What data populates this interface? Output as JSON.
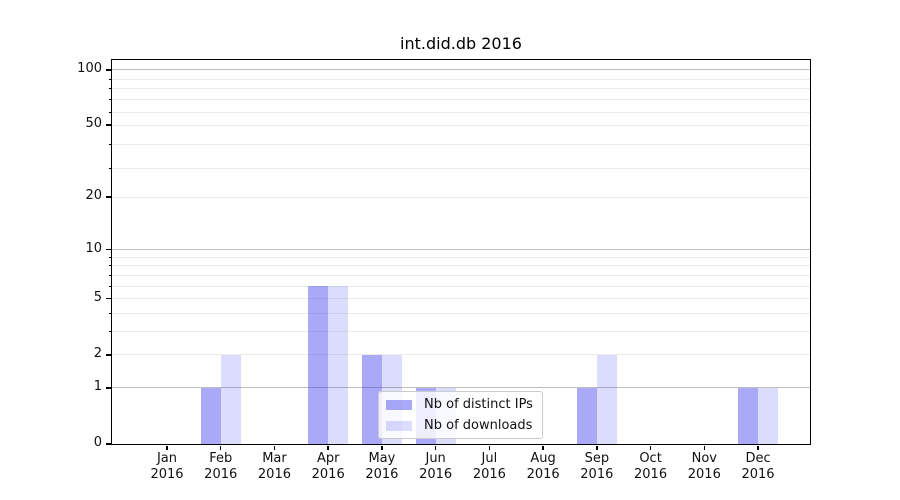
{
  "chart_data": {
    "type": "bar",
    "title": "int.did.db 2016",
    "categories": [
      "Jan 2016",
      "Feb 2016",
      "Mar 2016",
      "Apr 2016",
      "May 2016",
      "Jun 2016",
      "Jul 2016",
      "Aug 2016",
      "Sep 2016",
      "Oct 2016",
      "Nov 2016",
      "Dec 2016"
    ],
    "x_tick_line1": [
      "Jan",
      "Feb",
      "Mar",
      "Apr",
      "May",
      "Jun",
      "Jul",
      "Aug",
      "Sep",
      "Oct",
      "Nov",
      "Dec"
    ],
    "x_tick_line2": [
      "2016",
      "2016",
      "2016",
      "2016",
      "2016",
      "2016",
      "2016",
      "2016",
      "2016",
      "2016",
      "2016",
      "2016"
    ],
    "series": [
      {
        "name": "Nb of distinct IPs",
        "color": "rgba(40,40,235,0.40)",
        "values": [
          0,
          1,
          0,
          6,
          2,
          1,
          0,
          0,
          1,
          0,
          0,
          1
        ]
      },
      {
        "name": "Nb of downloads",
        "color": "rgba(40,40,235,0.165)",
        "values": [
          0,
          2,
          0,
          6,
          2,
          1,
          0,
          0,
          2,
          0,
          0,
          1
        ]
      }
    ],
    "y_axis": {
      "scale": "log1p",
      "tick_values": [
        0,
        1,
        2,
        5,
        10,
        20,
        50,
        100
      ],
      "tick_labels": [
        "0",
        "1",
        "2",
        "5",
        "10",
        "20",
        "50",
        "100"
      ],
      "major_gridline_values": [
        1,
        10,
        100
      ],
      "minor_gridline_values": [
        3,
        4,
        6,
        7,
        8,
        9,
        29,
        39,
        59,
        69,
        79,
        89
      ],
      "y_top": 113
    },
    "grid": "both",
    "legend": {
      "position": "lower center-right"
    },
    "colors": {
      "major_grid": "#bfbfbf",
      "minor_grid": "#ebebeb",
      "spine": "#000000",
      "legend_border": "#cccccc",
      "legend_bg": "rgba(255,255,255,0.8)"
    }
  }
}
